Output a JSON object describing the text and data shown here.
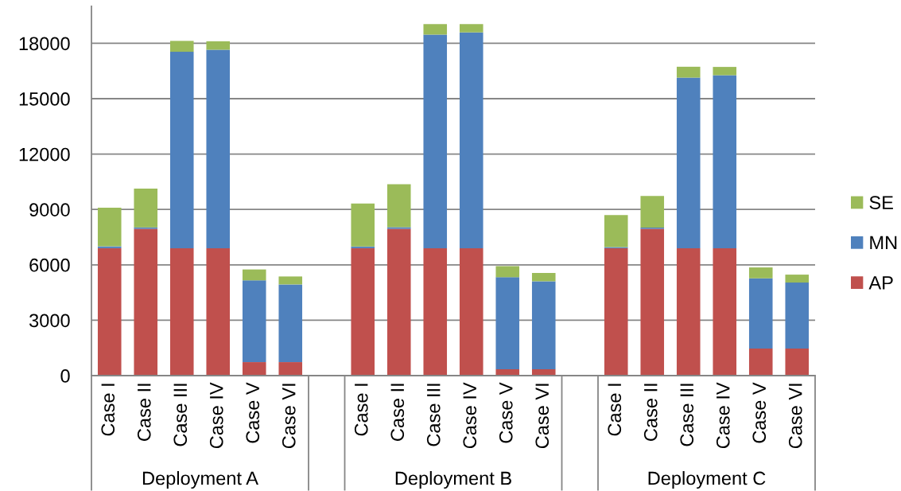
{
  "chart_data": {
    "type": "bar",
    "stacked": true,
    "categories": [
      "Case I",
      "Case II",
      "Case III",
      "Case IV",
      "Case V",
      "Case VI",
      null,
      "Case I",
      "Case II",
      "Case III",
      "Case IV",
      "Case V",
      "Case VI",
      null,
      "Case I",
      "Case II",
      "Case III",
      "Case IV",
      "Case V",
      "Case VI"
    ],
    "series": [
      {
        "name": "AP",
        "color": "#c0504d",
        "values": [
          6900,
          7950,
          6900,
          6900,
          730,
          730,
          null,
          6900,
          7950,
          6900,
          6900,
          350,
          350,
          null,
          6900,
          7950,
          6900,
          6900,
          1470,
          1470
        ]
      },
      {
        "name": "MN",
        "color": "#4f81bd",
        "values": [
          100,
          80,
          10640,
          10750,
          4430,
          4210,
          null,
          90,
          90,
          11570,
          11690,
          4980,
          4760,
          null,
          60,
          70,
          9240,
          9370,
          3800,
          3570
        ]
      },
      {
        "name": "SE",
        "color": "#9bbb59",
        "values": [
          2100,
          2100,
          590,
          460,
          590,
          430,
          null,
          2330,
          2330,
          570,
          450,
          600,
          450,
          null,
          1740,
          1710,
          590,
          450,
          590,
          430
        ]
      }
    ],
    "ylim": [
      0,
      20000
    ],
    "yticks": [
      0,
      3000,
      6000,
      9000,
      12000,
      15000,
      18000
    ],
    "grid": "y",
    "legend": "right",
    "annotations": [
      "Deployment A",
      "Deployment B",
      "Deployment C"
    ]
  }
}
